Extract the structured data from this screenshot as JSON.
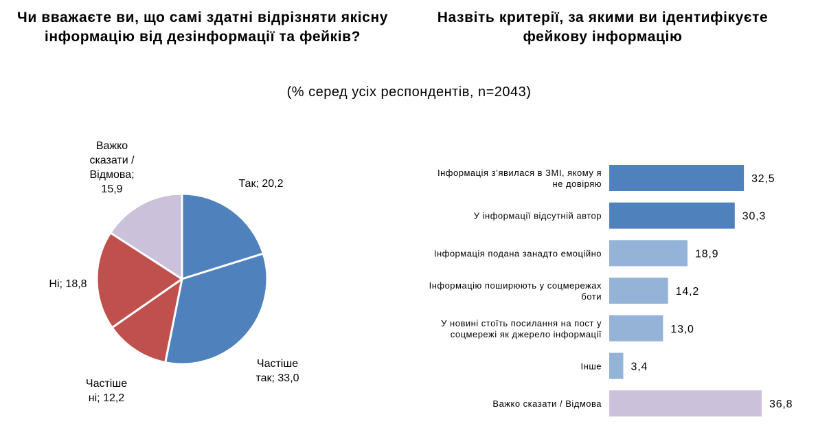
{
  "headings": {
    "left": "Чи вважаєте ви, що самі здатні відрізняти якісну інформацію від дезінформації та фейків?",
    "right": "Назвіть критерії, за якими ви ідентифікуєте фейкову інформацію",
    "subtitle": "(% серед усіх респондентів, n=2043)"
  },
  "chart_data": [
    {
      "type": "pie",
      "start_angle": "12 o'clock",
      "direction": "clockwise",
      "slices": [
        {
          "label_lines": [
            "Так; 20,2"
          ],
          "value": 20.2,
          "color": "#4F81BD"
        },
        {
          "label_lines": [
            "Частіше",
            "так; 33,0"
          ],
          "value": 33.0,
          "color": "#4F81BD"
        },
        {
          "label_lines": [
            "Частіше",
            "ні; 12,2"
          ],
          "value": 12.2,
          "color": "#C0504D"
        },
        {
          "label_lines": [
            "Ні; 18,8"
          ],
          "value": 18.8,
          "color": "#C0504D"
        },
        {
          "label_lines": [
            "Важко",
            "сказати /",
            "Відмова;",
            "15,9"
          ],
          "value": 15.9,
          "color": "#CCC1DA"
        }
      ]
    },
    {
      "type": "bar",
      "orientation": "horizontal",
      "xlim": [
        0,
        36.8
      ],
      "grid": false,
      "categories": [
        [
          "Інформація з’явилася в ЗМІ, якому я",
          "не довіряю"
        ],
        [
          "У інформації відсутній автор"
        ],
        [
          "Інформація подана занадто емоційно"
        ],
        [
          "Інформацію поширюють у соцмережах",
          "боти"
        ],
        [
          "У новині стоїть посилання на пост у",
          "соцмережі як джерело інформації"
        ],
        [
          "Інше"
        ],
        [
          "Важко сказати / Відмова"
        ]
      ],
      "values": [
        32.5,
        30.3,
        18.9,
        14.2,
        13.0,
        3.4,
        36.8
      ],
      "value_labels": [
        "32,5",
        "30,3",
        "18,9",
        "14,2",
        "13,0",
        "3,4",
        "36,8"
      ],
      "colors": [
        "#4F81BD",
        "#4F81BD",
        "#95B3D7",
        "#95B3D7",
        "#95B3D7",
        "#95B3D7",
        "#CCC1DA"
      ]
    }
  ]
}
